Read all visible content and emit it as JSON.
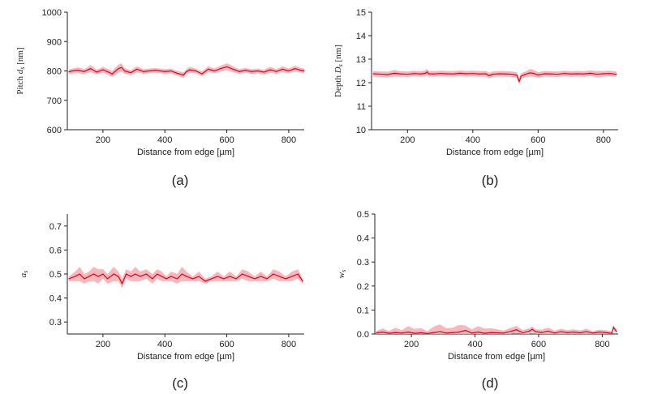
{
  "chart_data": [
    {
      "panel": "(a)",
      "type": "line",
      "xlabel": "Distance from edge [µm]",
      "ylabel": "Pitch d_s [nm]",
      "xlim": [
        85,
        850
      ],
      "ylim": [
        600,
        1000
      ],
      "xticks": [
        200,
        400,
        600,
        800
      ],
      "yticks": [
        600,
        700,
        800,
        900,
        1000
      ],
      "grid": false,
      "series": [
        {
          "line_color": "#e4001a",
          "band_color": "#f4aab2",
          "x": [
            90,
            100,
            120,
            140,
            160,
            180,
            200,
            220,
            230,
            250,
            260,
            270,
            290,
            310,
            330,
            350,
            370,
            400,
            420,
            440,
            460,
            470,
            480,
            500,
            520,
            540,
            560,
            580,
            600,
            610,
            620,
            640,
            660,
            680,
            700,
            720,
            740,
            760,
            780,
            800,
            820,
            840,
            850
          ],
          "y": [
            797,
            800,
            802,
            798,
            808,
            796,
            804,
            795,
            790,
            808,
            812,
            800,
            794,
            806,
            798,
            800,
            802,
            798,
            800,
            792,
            786,
            798,
            804,
            800,
            790,
            806,
            800,
            808,
            814,
            810,
            806,
            798,
            802,
            798,
            800,
            796,
            804,
            798,
            806,
            800,
            808,
            802,
            800
          ],
          "band": [
            8,
            8,
            10,
            8,
            12,
            8,
            10,
            10,
            10,
            14,
            14,
            10,
            8,
            10,
            8,
            8,
            8,
            8,
            8,
            8,
            10,
            8,
            10,
            8,
            8,
            10,
            8,
            10,
            12,
            12,
            10,
            8,
            8,
            8,
            8,
            8,
            10,
            8,
            10,
            8,
            10,
            8,
            8
          ]
        }
      ]
    },
    {
      "panel": "(b)",
      "type": "line",
      "xlabel": "Distance from edge [µm]",
      "ylabel": "Depth D_s [nm]",
      "xlim": [
        90,
        845
      ],
      "ylim": [
        10,
        15
      ],
      "xticks": [
        200,
        400,
        600,
        800
      ],
      "yticks": [
        10,
        11,
        12,
        13,
        14,
        15
      ],
      "grid": false,
      "series": [
        {
          "line_color": "#e4001a",
          "band_color": "#f4aab2",
          "x": [
            95,
            120,
            140,
            160,
            180,
            200,
            220,
            240,
            255,
            260,
            265,
            280,
            300,
            320,
            340,
            360,
            380,
            400,
            420,
            440,
            450,
            460,
            480,
            500,
            520,
            535,
            542,
            548,
            560,
            575,
            585,
            600,
            620,
            640,
            660,
            680,
            700,
            720,
            740,
            760,
            780,
            800,
            820,
            840
          ],
          "y": [
            12.38,
            12.36,
            12.35,
            12.4,
            12.37,
            12.36,
            12.39,
            12.37,
            12.4,
            12.46,
            12.38,
            12.37,
            12.39,
            12.38,
            12.37,
            12.4,
            12.38,
            12.39,
            12.37,
            12.38,
            12.3,
            12.36,
            12.38,
            12.37,
            12.36,
            12.32,
            12.05,
            12.28,
            12.35,
            12.42,
            12.4,
            12.33,
            12.38,
            12.37,
            12.36,
            12.39,
            12.37,
            12.38,
            12.37,
            12.4,
            12.36,
            12.38,
            12.39,
            12.36
          ],
          "band": [
            0.12,
            0.12,
            0.12,
            0.14,
            0.12,
            0.12,
            0.12,
            0.12,
            0.13,
            0.14,
            0.12,
            0.12,
            0.12,
            0.12,
            0.12,
            0.12,
            0.12,
            0.12,
            0.12,
            0.12,
            0.12,
            0.12,
            0.12,
            0.12,
            0.12,
            0.12,
            0.14,
            0.12,
            0.12,
            0.16,
            0.15,
            0.12,
            0.12,
            0.12,
            0.12,
            0.12,
            0.12,
            0.12,
            0.12,
            0.12,
            0.14,
            0.12,
            0.12,
            0.12
          ]
        }
      ]
    },
    {
      "panel": "(c)",
      "type": "line",
      "xlabel": "Distance from edge [µm]",
      "ylabel": "a_s",
      "xlim": [
        85,
        850
      ],
      "ylim": [
        0.25,
        0.75
      ],
      "xticks": [
        200,
        400,
        600,
        800
      ],
      "yticks": [
        0.3,
        0.4,
        0.5,
        0.6,
        0.7
      ],
      "grid": false,
      "series": [
        {
          "line_color": "#e4001a",
          "band_color": "#f4aab2",
          "x": [
            90,
            110,
            125,
            140,
            155,
            170,
            185,
            200,
            215,
            235,
            250,
            262,
            275,
            290,
            305,
            320,
            340,
            360,
            375,
            390,
            405,
            420,
            440,
            455,
            470,
            490,
            510,
            530,
            550,
            570,
            590,
            610,
            630,
            650,
            670,
            690,
            710,
            730,
            750,
            770,
            790,
            810,
            830,
            845
          ],
          "y": [
            0.48,
            0.49,
            0.5,
            0.48,
            0.49,
            0.5,
            0.49,
            0.5,
            0.48,
            0.5,
            0.49,
            0.46,
            0.5,
            0.49,
            0.5,
            0.49,
            0.5,
            0.48,
            0.5,
            0.49,
            0.48,
            0.49,
            0.48,
            0.5,
            0.49,
            0.48,
            0.49,
            0.47,
            0.48,
            0.49,
            0.48,
            0.49,
            0.48,
            0.5,
            0.49,
            0.48,
            0.49,
            0.48,
            0.5,
            0.49,
            0.48,
            0.49,
            0.5,
            0.47
          ],
          "band": [
            0.01,
            0.02,
            0.03,
            0.02,
            0.02,
            0.03,
            0.03,
            0.02,
            0.02,
            0.03,
            0.02,
            0.02,
            0.02,
            0.02,
            0.03,
            0.02,
            0.02,
            0.02,
            0.02,
            0.02,
            0.01,
            0.02,
            0.02,
            0.03,
            0.02,
            0.01,
            0.02,
            0.01,
            0.01,
            0.02,
            0.01,
            0.02,
            0.01,
            0.02,
            0.02,
            0.01,
            0.02,
            0.01,
            0.02,
            0.02,
            0.01,
            0.02,
            0.02,
            0.01
          ]
        }
      ]
    },
    {
      "panel": "(d)",
      "type": "line",
      "xlabel": "Distance from edge [µm]",
      "ylabel": "w_s",
      "xlim": [
        85,
        850
      ],
      "ylim": [
        0,
        0.5
      ],
      "xticks": [
        200,
        400,
        600,
        800
      ],
      "yticks": [
        0.0,
        0.1,
        0.2,
        0.3,
        0.4,
        0.5
      ],
      "grid": false,
      "series": [
        {
          "line_color": "#e4001a",
          "band_color": "#f4aab2",
          "x": [
            90,
            110,
            130,
            150,
            170,
            190,
            210,
            230,
            250,
            270,
            290,
            310,
            330,
            350,
            370,
            390,
            410,
            430,
            450,
            470,
            490,
            510,
            530,
            550,
            570,
            580,
            590,
            610,
            630,
            650,
            670,
            690,
            710,
            730,
            750,
            770,
            790,
            810,
            830,
            835,
            845
          ],
          "y": [
            0.005,
            0.008,
            0.003,
            0.006,
            0.004,
            0.008,
            0.003,
            0.005,
            0.002,
            0.006,
            0.01,
            0.004,
            0.006,
            0.008,
            0.015,
            0.004,
            0.008,
            0.003,
            0.006,
            0.005,
            0.004,
            0.01,
            0.018,
            0.005,
            0.012,
            0.02,
            0.01,
            0.006,
            0.012,
            0.004,
            0.01,
            0.006,
            0.008,
            0.005,
            0.01,
            0.004,
            0.008,
            0.006,
            0.003,
            0.028,
            0.01
          ],
          "band": [
            0.008,
            0.015,
            0.01,
            0.02,
            0.012,
            0.025,
            0.018,
            0.02,
            0.01,
            0.025,
            0.03,
            0.02,
            0.02,
            0.03,
            0.02,
            0.015,
            0.025,
            0.02,
            0.018,
            0.015,
            0.01,
            0.015,
            0.015,
            0.012,
            0.012,
            0.012,
            0.01,
            0.012,
            0.015,
            0.01,
            0.012,
            0.01,
            0.012,
            0.01,
            0.012,
            0.008,
            0.01,
            0.01,
            0.008,
            0.01,
            0.008
          ]
        }
      ]
    }
  ]
}
